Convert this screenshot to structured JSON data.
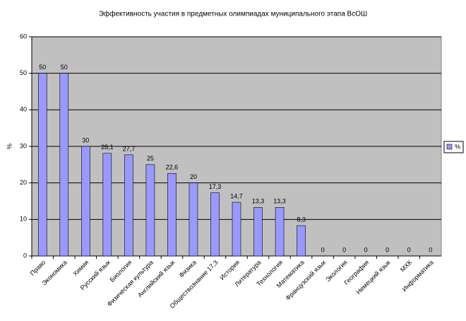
{
  "chart_data": {
    "type": "bar",
    "title": "Эффективность участия в предметных олимпиадах муниципального этапа  ВсОШ",
    "y_label": "%",
    "categories": [
      "Право",
      "Экономика",
      "Химия",
      "Русский язык",
      "Биология",
      "Физическая культура",
      "Английский язык",
      "Физика",
      "Обществознание 17,3",
      "История",
      "Литература",
      "Технология",
      "Математика",
      "Французский язык",
      "Экология",
      "География",
      "Немецкий язык",
      "МХК",
      "Информатика"
    ],
    "series": [
      {
        "name": "%",
        "color": "#9999ff",
        "values": [
          50,
          50,
          30,
          28.1,
          27.7,
          25,
          22.6,
          20,
          17.3,
          14.7,
          13.3,
          13.3,
          8.3,
          0,
          0,
          0,
          0,
          0,
          0
        ],
        "value_labels": [
          "50",
          "50",
          "30",
          "28,1",
          "27,7",
          "25",
          "22,6",
          "20",
          "17,3",
          "14,7",
          "13,3",
          "13,3",
          "8,3",
          "0",
          "0",
          "0",
          "0",
          "0",
          "0"
        ]
      }
    ],
    "ylim": [
      0,
      60
    ],
    "yticks": [
      0,
      10,
      20,
      30,
      40,
      50,
      60
    ],
    "grid": true,
    "legend": "right"
  }
}
